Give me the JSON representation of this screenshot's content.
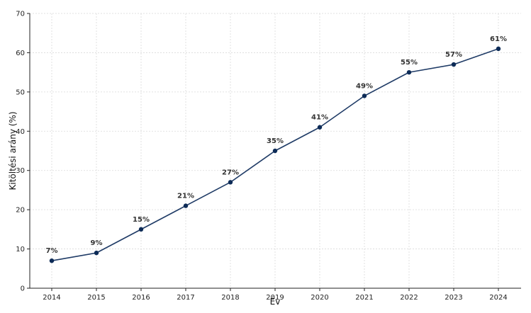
{
  "chart_data": {
    "type": "line",
    "title": "",
    "xlabel": "Év",
    "ylabel": "Kitöltési arány (%)",
    "x": [
      "2014",
      "2015",
      "2016",
      "2017",
      "2018",
      "2019",
      "2020",
      "2021",
      "2022",
      "2023",
      "2024"
    ],
    "series": [
      {
        "values": [
          7,
          9,
          15,
          21,
          27,
          35,
          41,
          49,
          55,
          57,
          61
        ],
        "labels": [
          "7%",
          "9%",
          "15%",
          "21%",
          "27%",
          "35%",
          "41%",
          "49%",
          "55%",
          "57%",
          "61%"
        ],
        "color": "#1f3b66",
        "marker_color": "#0d2b57"
      }
    ],
    "ylim": [
      0,
      70
    ],
    "yticks": [
      "0",
      "10",
      "20",
      "30",
      "40",
      "50",
      "60",
      "70"
    ],
    "grid": true,
    "grid_style": "dashed",
    "legend": "none"
  }
}
